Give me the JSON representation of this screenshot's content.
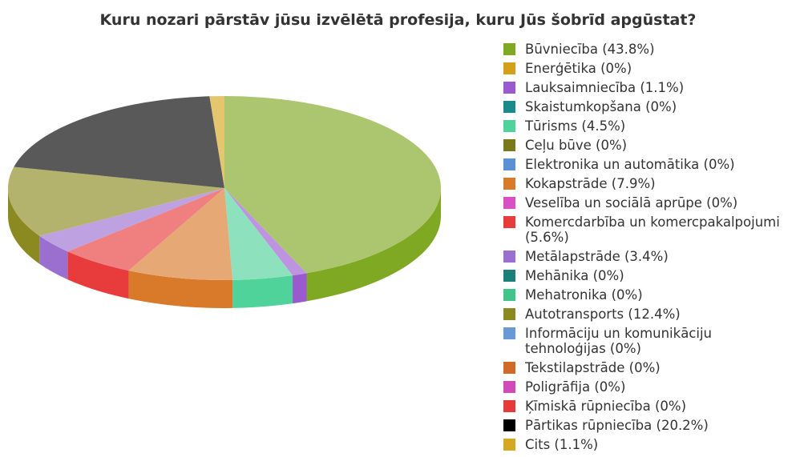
{
  "chart_data": {
    "type": "pie",
    "title": "Kuru nozari pārstāv jūsu izvēlētā profesija, kuru Jūs šobrīd apgūstat?",
    "categories": [
      "Būvniecība (43.8%)",
      "Enerģētika (0%)",
      "Lauksaimniecība (1.1%)",
      "Skaistumkopšana (0%)",
      "Tūrisms (4.5%)",
      "Ceļu būve (0%)",
      "Elektronika un automātika (0%)",
      "Kokapstrāde (7.9%)",
      "Veselība un sociālā aprūpe (0%)",
      "Komercdarbība un komercpakalpojumi (5.6%)",
      "Metālapstrāde (3.4%)",
      "Mehānika (0%)",
      "Mehatronika (0%)",
      "Autotransports (12.4%)",
      "Informāciju un komunikāciju tehnoloģijas (0%)",
      "Tekstilapstrāde (0%)",
      "Poligrāfija (0%)",
      "Ķīmiskā rūpniecība (0%)",
      "Pārtikas rūpniecība (20.2%)",
      "Cits (1.1%)"
    ],
    "values": [
      43.8,
      0,
      1.1,
      0,
      4.5,
      0,
      0,
      7.9,
      0,
      5.6,
      3.4,
      0,
      0,
      12.4,
      0,
      0,
      0,
      0,
      20.2,
      1.1
    ],
    "colors": [
      "#7fa823",
      "#d4a017",
      "#9b59d0",
      "#1a8a8a",
      "#4fd39a",
      "#7a7a1a",
      "#5b8fd6",
      "#d87a2a",
      "#d94fc4",
      "#e83b3b",
      "#9a6fd0",
      "#1a8078",
      "#3fc48a",
      "#8a8a20",
      "#6a9ad6",
      "#d06a28",
      "#d04aba",
      "#e53a3a",
      "#000000",
      "#d4a820"
    ],
    "legend": "right"
  }
}
